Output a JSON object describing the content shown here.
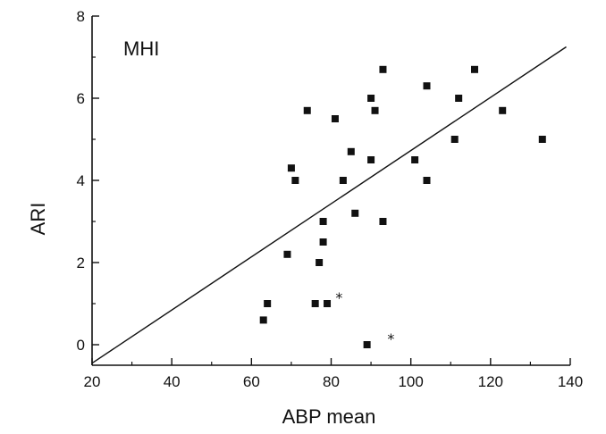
{
  "chart_data": {
    "type": "scatter",
    "annotation": "MHI",
    "xlabel": "ABP mean",
    "ylabel": "ARI",
    "xlim": [
      20,
      140
    ],
    "ylim": [
      -0.5,
      8
    ],
    "xticks": [
      20,
      40,
      60,
      80,
      100,
      120,
      140
    ],
    "yticks": [
      0,
      2,
      4,
      6,
      8
    ],
    "grid": false,
    "points": [
      {
        "x": 63,
        "y": 0.6
      },
      {
        "x": 64,
        "y": 1.0
      },
      {
        "x": 69,
        "y": 2.2
      },
      {
        "x": 70,
        "y": 4.3
      },
      {
        "x": 71,
        "y": 4.0
      },
      {
        "x": 74,
        "y": 5.7
      },
      {
        "x": 76,
        "y": 1.0
      },
      {
        "x": 77,
        "y": 2.0
      },
      {
        "x": 78,
        "y": 2.5
      },
      {
        "x": 78,
        "y": 3.0
      },
      {
        "x": 79,
        "y": 1.0
      },
      {
        "x": 81,
        "y": 5.5
      },
      {
        "x": 83,
        "y": 4.0
      },
      {
        "x": 85,
        "y": 4.7
      },
      {
        "x": 86,
        "y": 3.2
      },
      {
        "x": 89,
        "y": 0.0
      },
      {
        "x": 90,
        "y": 4.5
      },
      {
        "x": 90,
        "y": 6.0
      },
      {
        "x": 91,
        "y": 5.7
      },
      {
        "x": 93,
        "y": 3.0
      },
      {
        "x": 93,
        "y": 6.7
      },
      {
        "x": 101,
        "y": 4.5
      },
      {
        "x": 104,
        "y": 6.3
      },
      {
        "x": 104,
        "y": 4.0
      },
      {
        "x": 111,
        "y": 5.0
      },
      {
        "x": 112,
        "y": 6.0
      },
      {
        "x": 116,
        "y": 6.7
      },
      {
        "x": 123,
        "y": 5.7
      },
      {
        "x": 133,
        "y": 5.0
      }
    ],
    "starred_points": [
      {
        "x": 82,
        "y": 1.2,
        "symbol": "*"
      },
      {
        "x": 95,
        "y": 0.2,
        "symbol": "*"
      }
    ],
    "regression_line": {
      "x": [
        20,
        139
      ],
      "y": [
        -0.45,
        7.25
      ]
    }
  }
}
